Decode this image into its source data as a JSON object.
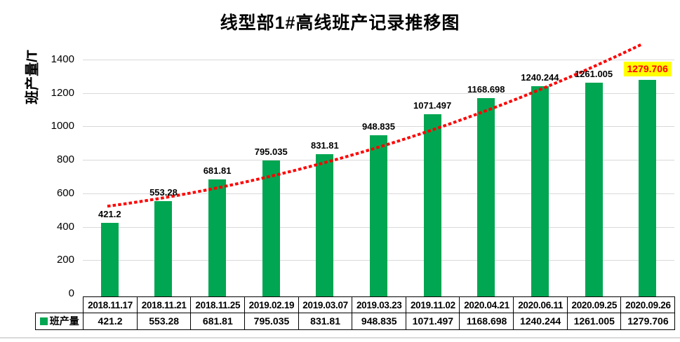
{
  "chart_data": {
    "type": "bar",
    "title": "线型部1#高线班产记录推移图",
    "xlabel": "",
    "ylabel": "班产量/T",
    "ylim": [
      0,
      1500
    ],
    "yticks": [
      0,
      200,
      400,
      600,
      800,
      1000,
      1200,
      1400
    ],
    "grid": true,
    "legend_position": "table-left",
    "categories": [
      "2018.11.17",
      "2018.11.21",
      "2018.11.25",
      "2019.02.19",
      "2019.03.07",
      "2019.03.23",
      "2019.11.02",
      "2020.04.21",
      "2020.06.11",
      "2020.09.25",
      "2020.09.26"
    ],
    "series": [
      {
        "name": "班产量",
        "values": [
          421.2,
          553.28,
          681.81,
          795.035,
          831.81,
          948.835,
          1071.497,
          1168.698,
          1240.244,
          1261.005,
          1279.706
        ]
      }
    ],
    "trendline": {
      "style": "dotted",
      "color": "#FF0000"
    },
    "highlight": {
      "index": 10,
      "background": "#FFFF00",
      "text_color": "#FF0000"
    },
    "colors": {
      "bar": "#00A651",
      "grid": "#D9D9D9",
      "text": "#000000",
      "table_border": "#000000",
      "background": "#FFFFFF"
    }
  }
}
